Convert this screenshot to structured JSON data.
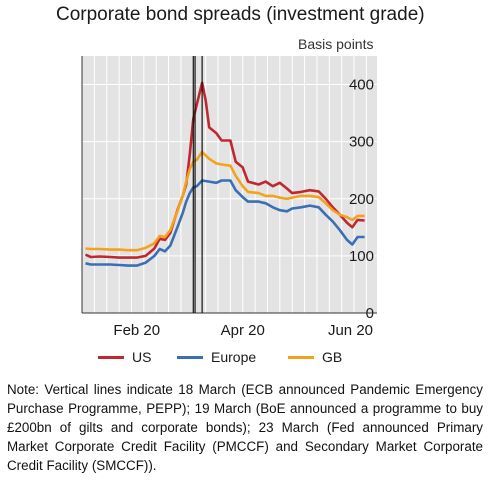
{
  "title": "Corporate bond spreads (investment grade)",
  "unit_label": "Basis points",
  "note": "Note: Vertical lines indicate 18 March (ECB announced Pandemic Emergency Purchase Programme, PEPP); 19 March (BoE announced a programme to buy £200bn of gilts and corporate bonds); 23 March (Fed announced Primary Market Corporate Credit Facility (PMCCF) and Secondary Market Corporate Credit Facility (SMCCF)).",
  "chart_data": {
    "type": "line",
    "title": "Corporate bond spreads (investment grade)",
    "ylabel": "Basis points",
    "ylim": [
      0,
      450
    ],
    "yticks": [
      0,
      100,
      200,
      300,
      400
    ],
    "xlim": [
      "2020-01-15",
      "2020-06-30"
    ],
    "xticks": [
      {
        "date": "2020-02-15",
        "label": "Feb 20"
      },
      {
        "date": "2020-04-15",
        "label": "Apr 20"
      },
      {
        "date": "2020-06-15",
        "label": "Jun 20"
      }
    ],
    "vlines": [
      "2020-03-18",
      "2020-03-19",
      "2020-03-23"
    ],
    "grid": true,
    "legend_position": "bottom",
    "series": [
      {
        "name": "US",
        "color": "#c0282f",
        "points": [
          [
            "2020-01-17",
            102
          ],
          [
            "2020-01-20",
            98
          ],
          [
            "2020-01-25",
            99
          ],
          [
            "2020-01-31",
            98
          ],
          [
            "2020-02-05",
            97
          ],
          [
            "2020-02-10",
            97
          ],
          [
            "2020-02-15",
            97
          ],
          [
            "2020-02-20",
            100
          ],
          [
            "2020-02-25",
            113
          ],
          [
            "2020-02-28",
            130
          ],
          [
            "2020-03-02",
            128
          ],
          [
            "2020-03-05",
            140
          ],
          [
            "2020-03-09",
            180
          ],
          [
            "2020-03-12",
            205
          ],
          [
            "2020-03-14",
            225
          ],
          [
            "2020-03-16",
            278
          ],
          [
            "2020-03-18",
            340
          ],
          [
            "2020-03-20",
            365
          ],
          [
            "2020-03-23",
            403
          ],
          [
            "2020-03-25",
            372
          ],
          [
            "2020-03-27",
            325
          ],
          [
            "2020-03-31",
            315
          ],
          [
            "2020-04-03",
            302
          ],
          [
            "2020-04-08",
            302
          ],
          [
            "2020-04-11",
            265
          ],
          [
            "2020-04-15",
            255
          ],
          [
            "2020-04-18",
            230
          ],
          [
            "2020-04-24",
            225
          ],
          [
            "2020-04-28",
            230
          ],
          [
            "2020-05-02",
            222
          ],
          [
            "2020-05-06",
            228
          ],
          [
            "2020-05-10",
            218
          ],
          [
            "2020-05-13",
            210
          ],
          [
            "2020-05-18",
            212
          ],
          [
            "2020-05-23",
            215
          ],
          [
            "2020-05-28",
            213
          ],
          [
            "2020-06-01",
            200
          ],
          [
            "2020-06-05",
            185
          ],
          [
            "2020-06-09",
            172
          ],
          [
            "2020-06-13",
            158
          ],
          [
            "2020-06-16",
            150
          ],
          [
            "2020-06-19",
            163
          ],
          [
            "2020-06-23",
            162
          ]
        ]
      },
      {
        "name": "Europe",
        "color": "#3a6fb4",
        "points": [
          [
            "2020-01-17",
            87
          ],
          [
            "2020-01-20",
            85
          ],
          [
            "2020-01-25",
            85
          ],
          [
            "2020-01-31",
            85
          ],
          [
            "2020-02-05",
            84
          ],
          [
            "2020-02-10",
            83
          ],
          [
            "2020-02-15",
            83
          ],
          [
            "2020-02-20",
            88
          ],
          [
            "2020-02-25",
            100
          ],
          [
            "2020-02-28",
            112
          ],
          [
            "2020-03-02",
            108
          ],
          [
            "2020-03-05",
            118
          ],
          [
            "2020-03-09",
            150
          ],
          [
            "2020-03-12",
            175
          ],
          [
            "2020-03-14",
            195
          ],
          [
            "2020-03-16",
            210
          ],
          [
            "2020-03-18",
            220
          ],
          [
            "2020-03-20",
            222
          ],
          [
            "2020-03-23",
            232
          ],
          [
            "2020-03-27",
            230
          ],
          [
            "2020-03-31",
            228
          ],
          [
            "2020-04-03",
            232
          ],
          [
            "2020-04-08",
            232
          ],
          [
            "2020-04-11",
            215
          ],
          [
            "2020-04-15",
            203
          ],
          [
            "2020-04-18",
            195
          ],
          [
            "2020-04-24",
            195
          ],
          [
            "2020-04-28",
            192
          ],
          [
            "2020-05-02",
            185
          ],
          [
            "2020-05-06",
            180
          ],
          [
            "2020-05-10",
            178
          ],
          [
            "2020-05-13",
            183
          ],
          [
            "2020-05-18",
            185
          ],
          [
            "2020-05-23",
            188
          ],
          [
            "2020-05-28",
            185
          ],
          [
            "2020-06-01",
            172
          ],
          [
            "2020-06-05",
            160
          ],
          [
            "2020-06-09",
            145
          ],
          [
            "2020-06-13",
            128
          ],
          [
            "2020-06-16",
            120
          ],
          [
            "2020-06-19",
            133
          ],
          [
            "2020-06-23",
            133
          ]
        ]
      },
      {
        "name": "GB",
        "color": "#f4a21e",
        "points": [
          [
            "2020-01-17",
            113
          ],
          [
            "2020-01-20",
            112
          ],
          [
            "2020-01-25",
            112
          ],
          [
            "2020-01-31",
            111
          ],
          [
            "2020-02-05",
            111
          ],
          [
            "2020-02-10",
            110
          ],
          [
            "2020-02-15",
            110
          ],
          [
            "2020-02-20",
            114
          ],
          [
            "2020-02-25",
            122
          ],
          [
            "2020-02-28",
            135
          ],
          [
            "2020-03-02",
            133
          ],
          [
            "2020-03-05",
            145
          ],
          [
            "2020-03-09",
            178
          ],
          [
            "2020-03-12",
            205
          ],
          [
            "2020-03-14",
            230
          ],
          [
            "2020-03-16",
            252
          ],
          [
            "2020-03-18",
            265
          ],
          [
            "2020-03-20",
            268
          ],
          [
            "2020-03-23",
            282
          ],
          [
            "2020-03-27",
            270
          ],
          [
            "2020-03-31",
            262
          ],
          [
            "2020-04-03",
            260
          ],
          [
            "2020-04-08",
            258
          ],
          [
            "2020-04-11",
            240
          ],
          [
            "2020-04-15",
            222
          ],
          [
            "2020-04-18",
            212
          ],
          [
            "2020-04-24",
            210
          ],
          [
            "2020-04-28",
            205
          ],
          [
            "2020-05-02",
            205
          ],
          [
            "2020-05-06",
            202
          ],
          [
            "2020-05-10",
            200
          ],
          [
            "2020-05-13",
            202
          ],
          [
            "2020-05-18",
            205
          ],
          [
            "2020-05-23",
            205
          ],
          [
            "2020-05-28",
            203
          ],
          [
            "2020-06-01",
            192
          ],
          [
            "2020-06-05",
            180
          ],
          [
            "2020-06-09",
            172
          ],
          [
            "2020-06-13",
            168
          ],
          [
            "2020-06-16",
            163
          ],
          [
            "2020-06-19",
            170
          ],
          [
            "2020-06-23",
            170
          ]
        ]
      }
    ]
  }
}
